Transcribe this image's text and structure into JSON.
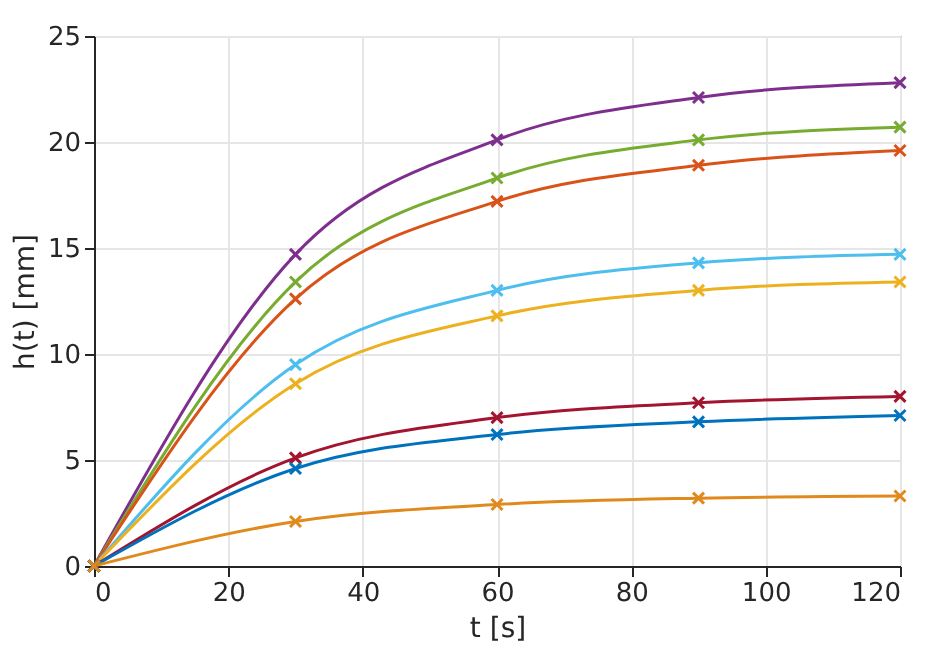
{
  "chart_data": {
    "type": "line",
    "xlabel": "t [s]",
    "ylabel": "h(t) [mm]",
    "x": [
      0,
      30,
      60,
      90,
      120
    ],
    "series": [
      {
        "color": "#7e2f8e",
        "values": [
          0,
          14.7,
          20.1,
          22.1,
          22.8
        ]
      },
      {
        "color": "#77ac30",
        "values": [
          0,
          13.4,
          18.3,
          20.1,
          20.7
        ]
      },
      {
        "color": "#d95319",
        "values": [
          0,
          12.6,
          17.2,
          18.9,
          19.6
        ]
      },
      {
        "color": "#4dbeee",
        "values": [
          0,
          9.5,
          13.0,
          14.3,
          14.7
        ]
      },
      {
        "color": "#edb120",
        "values": [
          0,
          8.6,
          11.8,
          13.0,
          13.4
        ]
      },
      {
        "color": "#a2142f",
        "values": [
          0,
          5.1,
          7.0,
          7.7,
          8.0
        ]
      },
      {
        "color": "#0072bd",
        "values": [
          0,
          4.6,
          6.2,
          6.8,
          7.1
        ]
      },
      {
        "color": "#e08a1e",
        "values": [
          0,
          2.1,
          2.9,
          3.2,
          3.3
        ]
      }
    ],
    "xlim": [
      0,
      120
    ],
    "xticks": [
      0,
      20,
      40,
      60,
      80,
      100,
      120
    ],
    "ylim": [
      0,
      25
    ],
    "yticks": [
      0,
      5,
      10,
      15,
      20,
      25
    ],
    "grid": true,
    "legend": false,
    "marker": "cross",
    "line_style": "solid"
  }
}
